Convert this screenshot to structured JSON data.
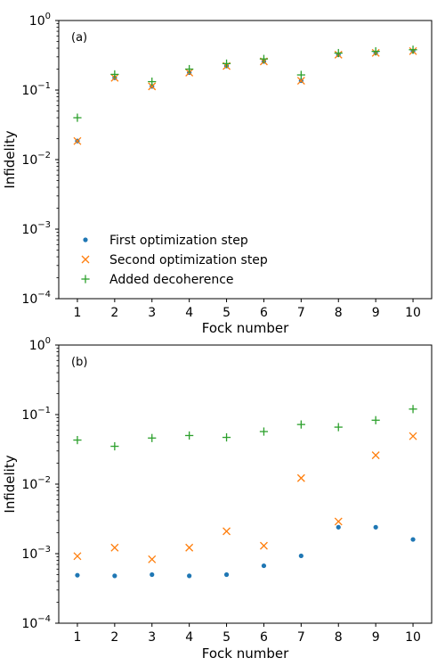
{
  "chart_data": [
    {
      "type": "scatter",
      "panel_label": "(a)",
      "xlabel": "Fock number",
      "ylabel": "Infidelity",
      "yscale": "log",
      "xlim": [
        0.5,
        10.5
      ],
      "ylim": [
        0.0001,
        1
      ],
      "xticks": [
        1,
        2,
        3,
        4,
        5,
        6,
        7,
        8,
        9,
        10
      ],
      "yticks": [
        {
          "base": "10",
          "exp": "0",
          "value": 1
        },
        {
          "base": "10",
          "exp": "−1",
          "value": 0.1
        },
        {
          "base": "10",
          "exp": "−2",
          "value": 0.01
        },
        {
          "base": "10",
          "exp": "−3",
          "value": 0.001
        },
        {
          "base": "10",
          "exp": "−4",
          "value": 0.0001
        }
      ],
      "grid": false,
      "legend_position": "lower-left",
      "x": [
        1,
        2,
        3,
        4,
        5,
        6,
        7,
        8,
        9,
        10
      ],
      "series": [
        {
          "name": "First optimization step",
          "marker": "dot",
          "color": "#1f77b4",
          "values": [
            0.0185,
            0.15,
            0.113,
            0.178,
            0.222,
            0.258,
            0.136,
            0.322,
            0.342,
            0.363
          ]
        },
        {
          "name": "Second optimization step",
          "marker": "x",
          "color": "#ff7f0e",
          "values": [
            0.0185,
            0.15,
            0.113,
            0.178,
            0.222,
            0.258,
            0.136,
            0.322,
            0.342,
            0.363
          ]
        },
        {
          "name": "Added decoherence",
          "marker": "plus",
          "color": "#2ca02c",
          "values": [
            0.04,
            0.168,
            0.132,
            0.2,
            0.24,
            0.28,
            0.165,
            0.34,
            0.36,
            0.38
          ]
        }
      ]
    },
    {
      "type": "scatter",
      "panel_label": "(b)",
      "xlabel": "Fock number",
      "ylabel": "Infidelity",
      "yscale": "log",
      "xlim": [
        0.5,
        10.5
      ],
      "ylim": [
        0.0001,
        1
      ],
      "xticks": [
        1,
        2,
        3,
        4,
        5,
        6,
        7,
        8,
        9,
        10
      ],
      "yticks": [
        {
          "base": "10",
          "exp": "0",
          "value": 1
        },
        {
          "base": "10",
          "exp": "−1",
          "value": 0.1
        },
        {
          "base": "10",
          "exp": "−2",
          "value": 0.01
        },
        {
          "base": "10",
          "exp": "−3",
          "value": 0.001
        },
        {
          "base": "10",
          "exp": "−4",
          "value": 0.0001
        }
      ],
      "grid": false,
      "x": [
        1,
        2,
        3,
        4,
        5,
        6,
        7,
        8,
        9,
        10
      ],
      "series": [
        {
          "name": "First optimization step",
          "marker": "dot",
          "color": "#1f77b4",
          "values": [
            0.00049,
            0.00048,
            0.0005,
            0.00048,
            0.0005,
            0.00067,
            0.00093,
            0.0024,
            0.0024,
            0.0016
          ]
        },
        {
          "name": "Second optimization step",
          "marker": "x",
          "color": "#ff7f0e",
          "values": [
            0.00092,
            0.00122,
            0.00083,
            0.00122,
            0.0021,
            0.0013,
            0.0122,
            0.0029,
            0.026,
            0.049
          ]
        },
        {
          "name": "Added decoherence",
          "marker": "plus",
          "color": "#2ca02c",
          "values": [
            0.043,
            0.035,
            0.046,
            0.05,
            0.047,
            0.057,
            0.072,
            0.066,
            0.083,
            0.12
          ]
        }
      ]
    }
  ]
}
